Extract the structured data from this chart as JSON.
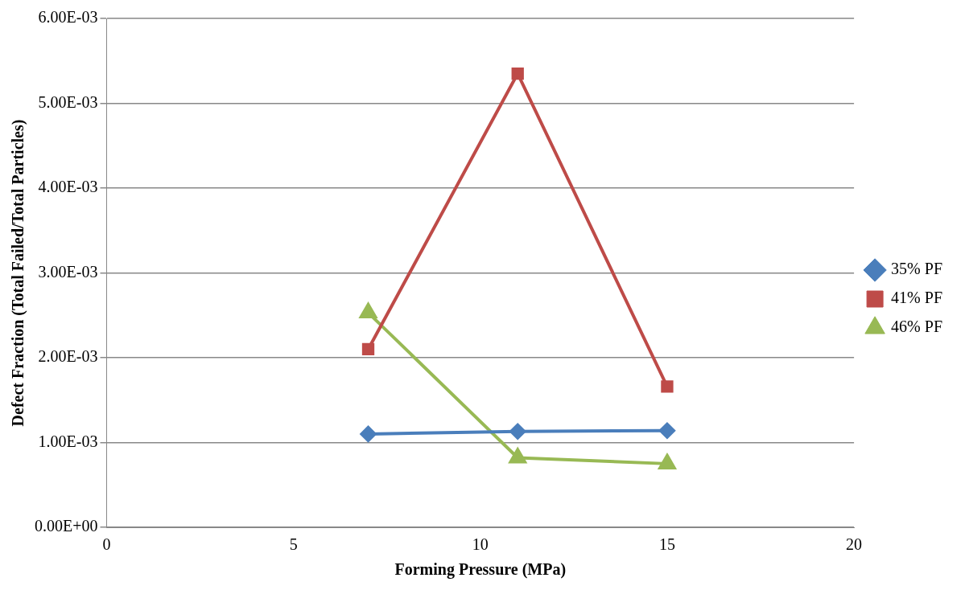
{
  "chart_data": {
    "type": "line",
    "xlabel": "Forming Pressure (MPa)",
    "ylabel": "Defect Fraction (Total Failed/Total Particles)",
    "x": [
      7,
      11,
      15
    ],
    "series": [
      {
        "name": "35% PF",
        "color": "#4a7ebb",
        "values": [
          0.0011,
          0.00113,
          0.00114
        ],
        "marker": "diamond"
      },
      {
        "name": "41% PF",
        "color": "#be4b48",
        "values": [
          0.0021,
          0.00535,
          0.00166
        ],
        "marker": "square"
      },
      {
        "name": "46% PF",
        "color": "#98b954",
        "values": [
          0.00253,
          0.00082,
          0.00075
        ],
        "marker": "triangle"
      }
    ],
    "xlim": [
      0,
      20
    ],
    "xticks": [
      0,
      5,
      10,
      15,
      20
    ],
    "ylim": [
      0,
      0.006
    ],
    "yticks": [
      {
        "value": 0,
        "label": "0.00E+00"
      },
      {
        "value": 0.001,
        "label": "1.00E-03"
      },
      {
        "value": 0.002,
        "label": "2.00E-03"
      },
      {
        "value": 0.003,
        "label": "3.00E-03"
      },
      {
        "value": 0.004,
        "label": "4.00E-03"
      },
      {
        "value": 0.005,
        "label": "5.00E-03"
      },
      {
        "value": 0.006,
        "label": "6.00E-03"
      }
    ],
    "grid": "y",
    "legend": "right",
    "line_style": "solid"
  }
}
